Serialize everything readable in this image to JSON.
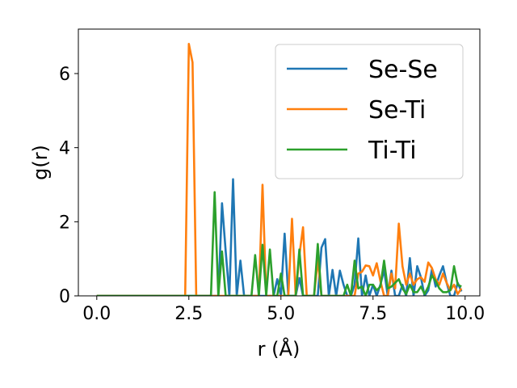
{
  "chart_data": {
    "type": "line",
    "title": "",
    "xlabel": "r (Å)",
    "ylabel": "g(r)",
    "xlim": [
      -0.5,
      10.4
    ],
    "ylim": [
      0,
      7.2
    ],
    "xticks": [
      0.0,
      2.5,
      5.0,
      7.5,
      10.0
    ],
    "xtick_labels": [
      "0.0",
      "2.5",
      "5.0",
      "7.5",
      "10.0"
    ],
    "yticks": [
      0,
      2,
      4,
      6
    ],
    "ytick_labels": [
      "0",
      "2",
      "4",
      "6"
    ],
    "grid": false,
    "legend_position": "top-right",
    "series": [
      {
        "name": "Se-Se",
        "color": "#1f77b4",
        "x": [
          0.0,
          3.3,
          3.4,
          3.5,
          3.6,
          3.7,
          3.8,
          3.9,
          4.0,
          4.1,
          4.8,
          4.9,
          5.0,
          5.1,
          5.2,
          5.4,
          5.5,
          5.6,
          5.7,
          6.0,
          6.1,
          6.2,
          6.3,
          6.4,
          6.5,
          6.6,
          6.7,
          6.8,
          6.9,
          7.0,
          7.1,
          7.2,
          7.3,
          7.4,
          7.5,
          7.6,
          7.7,
          7.8,
          7.9,
          8.0,
          8.1,
          8.2,
          8.3,
          8.4,
          8.5,
          8.6,
          8.7,
          8.8,
          8.9,
          9.0,
          9.1,
          9.2,
          9.3,
          9.4,
          9.5,
          9.6,
          9.7,
          9.8,
          9.9
        ],
        "y": [
          0,
          0,
          2.5,
          1.2,
          0,
          3.15,
          0,
          0.95,
          0,
          0,
          0,
          0.45,
          0,
          1.68,
          0,
          0,
          0.48,
          0,
          0,
          0,
          1.3,
          1.53,
          0,
          0.7,
          0,
          0.68,
          0.3,
          0,
          0,
          0.3,
          1.55,
          0,
          0.55,
          0,
          0.3,
          0,
          0.3,
          0.7,
          0,
          0.68,
          0,
          0,
          0.3,
          0,
          1.02,
          0,
          0.8,
          0.5,
          0,
          0.15,
          0.72,
          0.25,
          0.55,
          0.8,
          0.35,
          0,
          0,
          0.35,
          0.12
        ]
      },
      {
        "name": "Se-Ti",
        "color": "#ff7f0e",
        "x": [
          0.0,
          2.4,
          2.5,
          2.6,
          2.7,
          4.4,
          4.5,
          4.6,
          5.2,
          5.3,
          5.4,
          5.5,
          5.6,
          5.7,
          5.9,
          6.0,
          6.1,
          7.0,
          7.1,
          7.2,
          7.3,
          7.4,
          7.5,
          7.6,
          7.7,
          7.8,
          7.9,
          8.0,
          8.1,
          8.2,
          8.3,
          8.4,
          8.5,
          8.6,
          8.7,
          8.8,
          8.9,
          9.0,
          9.1,
          9.2,
          9.3,
          9.4,
          9.5,
          9.6,
          9.7,
          9.8,
          9.9
        ],
        "y": [
          0,
          0,
          6.8,
          6.3,
          0,
          0,
          3.0,
          0,
          0,
          2.08,
          0,
          1.1,
          1.85,
          0,
          0,
          0.98,
          0,
          0,
          0.6,
          0.65,
          0.82,
          0.8,
          0.55,
          0.88,
          0.4,
          0,
          0,
          0.6,
          0.2,
          1.95,
          0.8,
          0.3,
          0.6,
          0.3,
          0.45,
          0.5,
          0.38,
          0.9,
          0.75,
          0.45,
          0.3,
          0.6,
          0.35,
          0.15,
          0.3,
          0.05,
          0.2
        ]
      },
      {
        "name": "Ti-Ti",
        "color": "#2ca02c",
        "x": [
          0.0,
          3.1,
          3.2,
          3.3,
          3.4,
          3.5,
          3.6,
          4.2,
          4.3,
          4.4,
          4.5,
          4.6,
          4.7,
          4.8,
          4.9,
          5.0,
          5.1,
          5.4,
          5.5,
          5.6,
          5.7,
          5.8,
          5.9,
          6.0,
          6.1,
          6.7,
          6.8,
          6.9,
          7.0,
          7.1,
          7.2,
          7.3,
          7.4,
          7.5,
          7.6,
          7.7,
          7.8,
          7.9,
          8.0,
          8.2,
          8.3,
          8.4,
          8.5,
          8.6,
          8.7,
          8.8,
          8.9,
          9.0,
          9.1,
          9.2,
          9.3,
          9.4,
          9.5,
          9.6,
          9.7,
          9.8,
          9.9
        ],
        "y": [
          0,
          0,
          2.8,
          0,
          1.2,
          0,
          0,
          0,
          1.1,
          0,
          1.38,
          0,
          1.25,
          0,
          0,
          0.6,
          0,
          0,
          1.25,
          0,
          0,
          0,
          0,
          1.4,
          0,
          0,
          0.3,
          0,
          0.95,
          0.2,
          0.25,
          0,
          0.3,
          0.3,
          0.15,
          0.25,
          0.95,
          0.2,
          0.25,
          0.45,
          0.2,
          0.05,
          0.3,
          0.1,
          0.1,
          0.25,
          0.05,
          0.25,
          0.55,
          0.4,
          0.2,
          0.1,
          0.1,
          0.15,
          0.8,
          0.3,
          0.25
        ]
      }
    ]
  }
}
